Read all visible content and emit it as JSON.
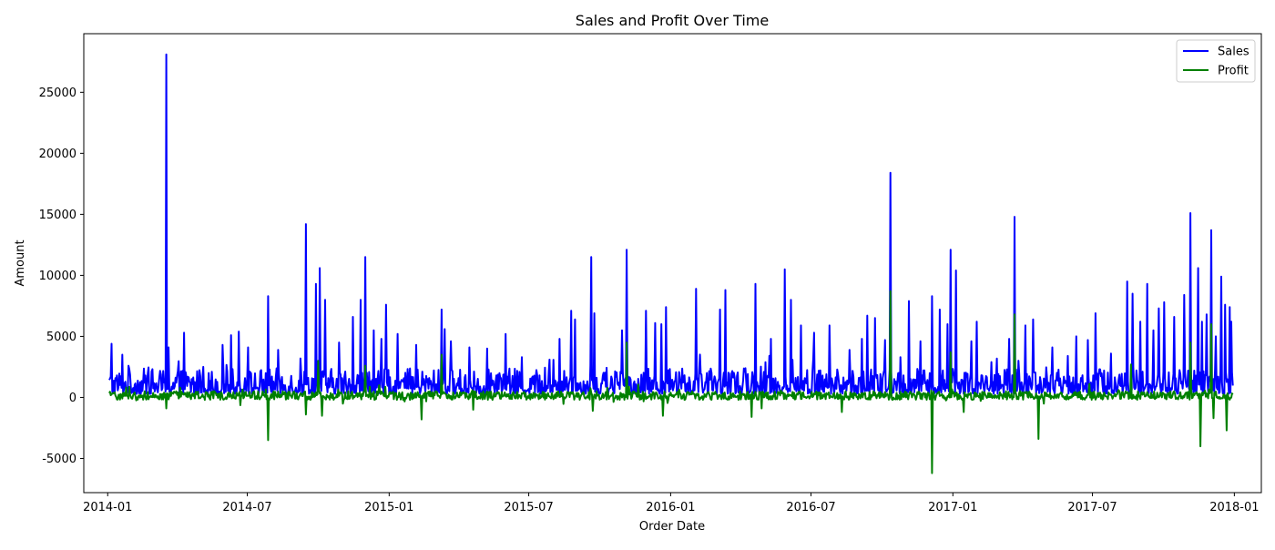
{
  "chart_data": {
    "type": "line",
    "title": "Sales and Profit Over Time",
    "xlabel": "Order Date",
    "ylabel": "Amount",
    "x_range": [
      "2013-12-01",
      "2018-02-05"
    ],
    "ylim": [
      -7800,
      29800
    ],
    "grid": false,
    "legend": {
      "placement": "top-right",
      "entries": [
        "Sales",
        "Profit"
      ]
    },
    "x_ticks": [
      "2014-01",
      "2014-07",
      "2015-01",
      "2015-07",
      "2016-01",
      "2016-07",
      "2017-01",
      "2017-07",
      "2018-01"
    ],
    "y_ticks": [
      -5000,
      0,
      5000,
      10000,
      15000,
      20000,
      25000
    ],
    "x_start": "2014-01-03",
    "x_end": "2017-12-30",
    "series": [
      {
        "name": "Sales",
        "color": "#0000ff",
        "baseline": [
          300,
          1600
        ],
        "peaks": [
          [
            "2014-01-06",
            4400
          ],
          [
            "2014-01-20",
            3500
          ],
          [
            "2014-01-28",
            2600
          ],
          [
            "2014-02-22",
            2000
          ],
          [
            "2014-03-18",
            28100
          ],
          [
            "2014-03-21",
            4100
          ],
          [
            "2014-04-10",
            5300
          ],
          [
            "2014-05-05",
            2500
          ],
          [
            "2014-05-30",
            4300
          ],
          [
            "2014-06-10",
            5100
          ],
          [
            "2014-06-20",
            5400
          ],
          [
            "2014-07-02",
            4100
          ],
          [
            "2014-07-28",
            8300
          ],
          [
            "2014-08-10",
            3900
          ],
          [
            "2014-09-08",
            3200
          ],
          [
            "2014-09-15",
            14200
          ],
          [
            "2014-09-28",
            9300
          ],
          [
            "2014-10-03",
            10600
          ],
          [
            "2014-10-10",
            8000
          ],
          [
            "2014-10-28",
            4500
          ],
          [
            "2014-11-15",
            6600
          ],
          [
            "2014-11-25",
            8000
          ],
          [
            "2014-12-01",
            11500
          ],
          [
            "2014-12-12",
            5500
          ],
          [
            "2014-12-22",
            4800
          ],
          [
            "2014-12-28",
            7600
          ],
          [
            "2015-01-12",
            5200
          ],
          [
            "2015-02-05",
            4300
          ],
          [
            "2015-03-10",
            7200
          ],
          [
            "2015-03-14",
            5600
          ],
          [
            "2015-03-22",
            4600
          ],
          [
            "2015-04-15",
            4100
          ],
          [
            "2015-05-08",
            4000
          ],
          [
            "2015-06-01",
            5200
          ],
          [
            "2015-06-22",
            3300
          ],
          [
            "2015-07-28",
            3100
          ],
          [
            "2015-08-10",
            4800
          ],
          [
            "2015-08-25",
            7100
          ],
          [
            "2015-08-30",
            6400
          ],
          [
            "2015-09-20",
            11500
          ],
          [
            "2015-09-24",
            6900
          ],
          [
            "2015-10-30",
            5500
          ],
          [
            "2015-11-05",
            12100
          ],
          [
            "2015-11-30",
            7100
          ],
          [
            "2015-12-12",
            6100
          ],
          [
            "2015-12-20",
            6000
          ],
          [
            "2015-12-26",
            7400
          ],
          [
            "2016-02-03",
            8900
          ],
          [
            "2016-03-05",
            7200
          ],
          [
            "2016-03-12",
            8800
          ],
          [
            "2016-04-20",
            9300
          ],
          [
            "2016-05-10",
            4800
          ],
          [
            "2016-05-28",
            10500
          ],
          [
            "2016-06-05",
            8000
          ],
          [
            "2016-06-18",
            5900
          ],
          [
            "2016-07-05",
            5300
          ],
          [
            "2016-07-25",
            5900
          ],
          [
            "2016-08-20",
            3900
          ],
          [
            "2016-09-05",
            4800
          ],
          [
            "2016-09-12",
            6700
          ],
          [
            "2016-09-22",
            6500
          ],
          [
            "2016-10-05",
            4700
          ],
          [
            "2016-10-12",
            18400
          ],
          [
            "2016-10-25",
            3300
          ],
          [
            "2016-11-05",
            7900
          ],
          [
            "2016-11-20",
            4600
          ],
          [
            "2016-12-05",
            8300
          ],
          [
            "2016-12-15",
            7200
          ],
          [
            "2016-12-25",
            6000
          ],
          [
            "2016-12-29",
            12100
          ],
          [
            "2017-01-05",
            10400
          ],
          [
            "2017-01-25",
            4600
          ],
          [
            "2017-02-01",
            6200
          ],
          [
            "2017-02-20",
            2900
          ],
          [
            "2017-03-15",
            4800
          ],
          [
            "2017-03-22",
            14800
          ],
          [
            "2017-04-05",
            5900
          ],
          [
            "2017-04-15",
            6400
          ],
          [
            "2017-05-10",
            4100
          ],
          [
            "2017-05-30",
            3400
          ],
          [
            "2017-06-10",
            5000
          ],
          [
            "2017-06-25",
            4700
          ],
          [
            "2017-07-05",
            6900
          ],
          [
            "2017-07-25",
            3600
          ],
          [
            "2017-08-15",
            9500
          ],
          [
            "2017-08-22",
            8500
          ],
          [
            "2017-09-01",
            6200
          ],
          [
            "2017-09-10",
            9300
          ],
          [
            "2017-09-18",
            5500
          ],
          [
            "2017-09-25",
            7300
          ],
          [
            "2017-10-02",
            7800
          ],
          [
            "2017-10-15",
            6600
          ],
          [
            "2017-10-28",
            8400
          ],
          [
            "2017-11-05",
            15100
          ],
          [
            "2017-11-15",
            10600
          ],
          [
            "2017-11-20",
            6200
          ],
          [
            "2017-11-26",
            6800
          ],
          [
            "2017-12-02",
            13700
          ],
          [
            "2017-12-08",
            5000
          ],
          [
            "2017-12-15",
            9900
          ],
          [
            "2017-12-20",
            7600
          ],
          [
            "2017-12-26",
            7400
          ],
          [
            "2017-12-28",
            6200
          ]
        ]
      },
      {
        "name": "Profit",
        "color": "#008000",
        "baseline": [
          -200,
          500
        ],
        "peaks": [
          [
            "2014-03-18",
            -900
          ],
          [
            "2014-07-28",
            -3500
          ],
          [
            "2014-09-15",
            -1400
          ],
          [
            "2014-10-01",
            3000
          ],
          [
            "2014-10-06",
            -1500
          ],
          [
            "2014-12-01",
            2600
          ],
          [
            "2015-02-12",
            -1800
          ],
          [
            "2015-03-10",
            3500
          ],
          [
            "2015-04-20",
            -1000
          ],
          [
            "2015-09-22",
            -1100
          ],
          [
            "2015-11-05",
            4500
          ],
          [
            "2015-12-22",
            -1500
          ],
          [
            "2016-04-15",
            -1600
          ],
          [
            "2016-04-28",
            -900
          ],
          [
            "2016-08-10",
            -1200
          ],
          [
            "2016-10-12",
            8700
          ],
          [
            "2016-12-05",
            -6200
          ],
          [
            "2016-12-29",
            3700
          ],
          [
            "2017-01-15",
            -1200
          ],
          [
            "2017-03-22",
            6800
          ],
          [
            "2017-04-22",
            -3400
          ],
          [
            "2017-08-20",
            2700
          ],
          [
            "2017-11-05",
            4500
          ],
          [
            "2017-11-18",
            -4000
          ],
          [
            "2017-12-02",
            6000
          ],
          [
            "2017-12-05",
            -1700
          ],
          [
            "2017-12-22",
            -2700
          ]
        ]
      }
    ]
  }
}
